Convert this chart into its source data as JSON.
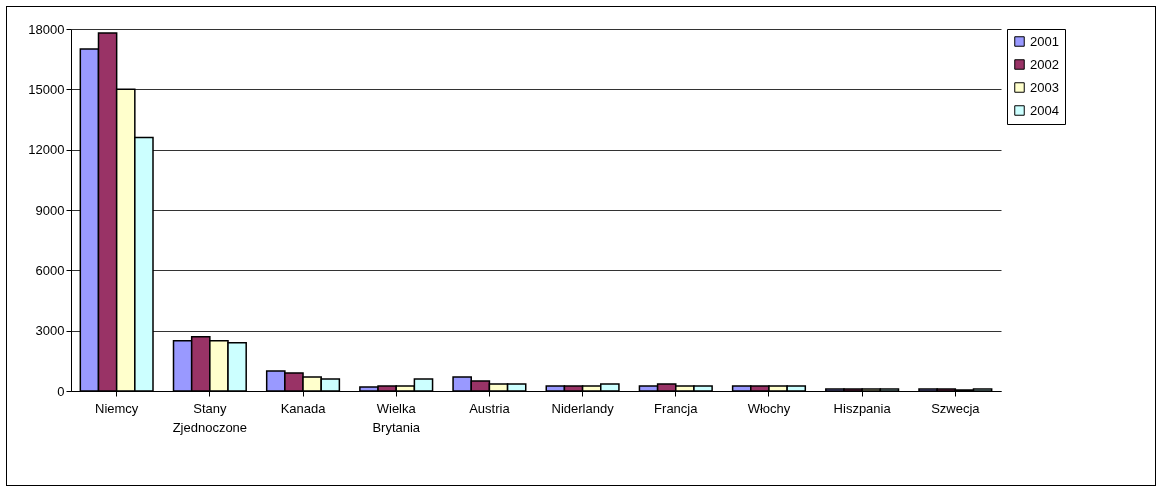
{
  "chart_data": {
    "type": "bar",
    "categories": [
      "Niemcy",
      "Stany Zjednoczone",
      "Kanada",
      "Wielka Brytania",
      "Austria",
      "Niderlandy",
      "Francja",
      "Włochy",
      "Hiszpania",
      "Szwecja"
    ],
    "series": [
      {
        "name": "2001",
        "color": "#9999ff",
        "values": [
          17000,
          2500,
          1000,
          200,
          700,
          250,
          250,
          250,
          100,
          100
        ]
      },
      {
        "name": "2002",
        "color": "#993366",
        "values": [
          17800,
          2700,
          900,
          250,
          500,
          250,
          350,
          250,
          100,
          100
        ]
      },
      {
        "name": "2003",
        "color": "#ffffcc",
        "values": [
          15000,
          2500,
          700,
          250,
          350,
          250,
          250,
          250,
          100,
          50
        ]
      },
      {
        "name": "2004",
        "color": "#ccffff",
        "values": [
          12600,
          2400,
          600,
          600,
          350,
          350,
          250,
          250,
          100,
          100
        ]
      }
    ],
    "ylim": [
      0,
      18000
    ],
    "yticks": [
      0,
      3000,
      6000,
      9000,
      12000,
      15000,
      18000
    ],
    "grid": "y",
    "legend": "right"
  }
}
